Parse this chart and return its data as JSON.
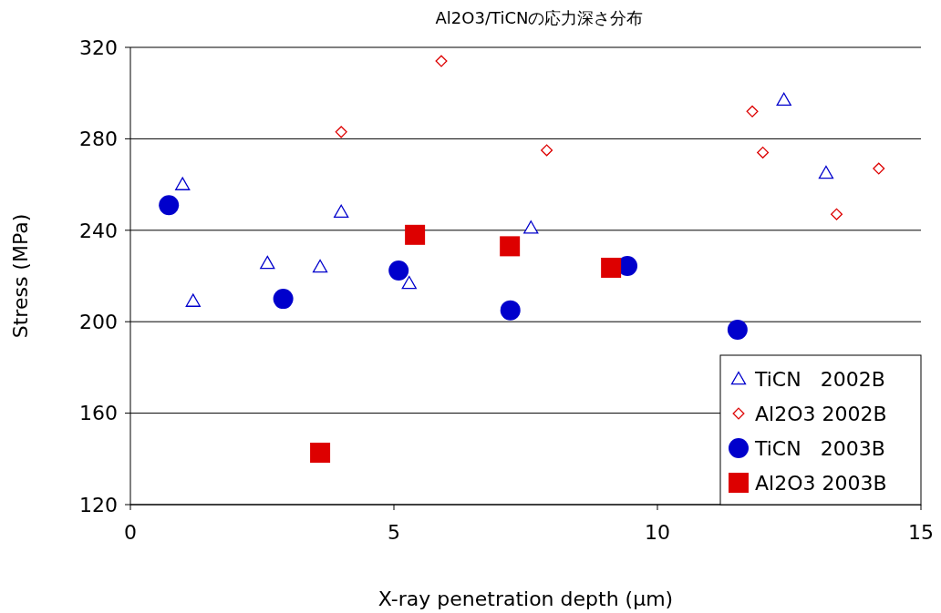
{
  "chart_data": {
    "type": "scatter",
    "title": "Al2O3/TiCNの応力深さ分布",
    "xlabel": "X-ray penetration depth (μm)",
    "ylabel": "Stress (MPa)",
    "xlim": [
      0,
      15
    ],
    "xticks": [
      0,
      5,
      10,
      15
    ],
    "ylim": [
      120,
      320
    ],
    "yticks": [
      120,
      160,
      200,
      240,
      280,
      320
    ],
    "grid": "y",
    "legend": "bottom right",
    "series": [
      {
        "name": "TiCN   2002B",
        "color": "#0000cc",
        "marker": "triangle",
        "x": [
          0.99,
          1.19,
          2.6,
          3.6,
          4.0,
          5.29,
          7.6,
          12.4,
          13.2
        ],
        "values": [
          260,
          209,
          225.6,
          224,
          248,
          216.8,
          241,
          297,
          265
        ]
      },
      {
        "name": "Al2O3 2002B",
        "color": "#dd0000",
        "marker": "diamond",
        "x": [
          4.0,
          5.9,
          7.9,
          11.8,
          12.0,
          13.4,
          14.2
        ],
        "values": [
          283,
          314,
          275,
          292,
          274,
          247,
          267
        ]
      },
      {
        "name": "TiCN   2003B",
        "color": "#0000cc",
        "marker": "circle",
        "x": [
          0.73,
          2.9,
          5.09,
          7.21,
          9.43,
          11.52
        ],
        "values": [
          251,
          210,
          222.4,
          205,
          224.4,
          196.5
        ]
      },
      {
        "name": "Al2O3 2003B",
        "color": "#dd0000",
        "marker": "square",
        "x": [
          3.6,
          5.4,
          7.2,
          9.12
        ],
        "values": [
          142.7,
          238,
          233,
          223.6
        ]
      }
    ]
  }
}
